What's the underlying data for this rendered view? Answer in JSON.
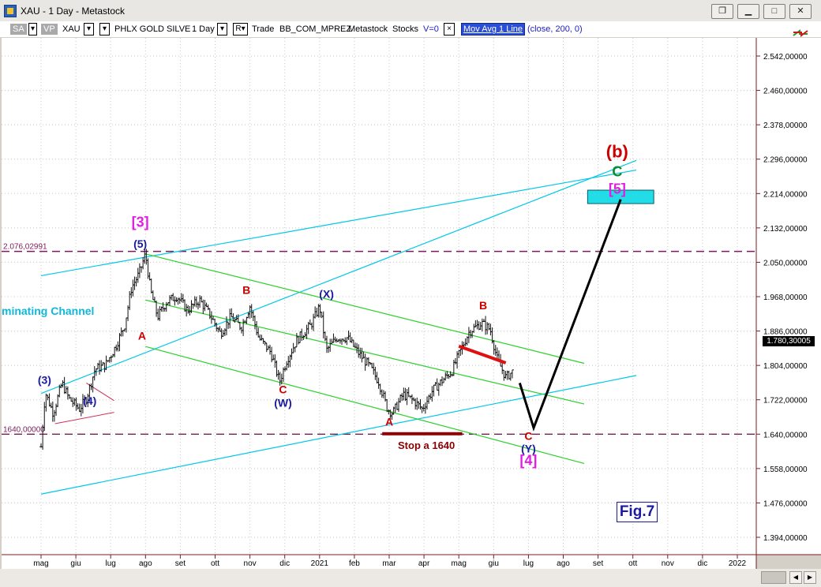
{
  "window": {
    "title": "XAU - 1 Day - Metastock",
    "controls": [
      "restore",
      "minimize",
      "maximize",
      "close"
    ]
  },
  "toolbar": {
    "sa": "SA",
    "vp": "VP",
    "symbol": "XAU",
    "name": "PHLX GOLD SILVE",
    "period": "1 Day",
    "r_label": "R",
    "trade": "Trade",
    "account": "BB_COM_MPREZ",
    "source": "Metastock",
    "stocks": "Stocks",
    "v": "V=0",
    "x_btn": "×",
    "indicator": "Mov Avg 1 Line",
    "params": "(close,  200,  0)"
  },
  "colors": {
    "red": "#cc0000",
    "blue": "#1a1aa0",
    "magenta": "#e020e0",
    "green": "#0a8a2a",
    "cyan": "#00c8e8",
    "channel_green": "#2bd12b",
    "level_line": "#7a1c5a"
  },
  "chart_data": {
    "type": "ohlc",
    "y_axis": {
      "ticks": [
        "2.542,00000",
        "2.460,00000",
        "2.378,00000",
        "2.296,00000",
        "2.214,00000",
        "2.132,00000",
        "2.050,00000",
        "1.968,00000",
        "1.886,00000",
        "1.804,00000",
        "1.722,00000",
        "1.640,00000",
        "1.558,00000",
        "1.476,00000",
        "1.394,00000"
      ],
      "tick_values": [
        2542,
        2460,
        2378,
        2296,
        2214,
        2132,
        2050,
        1968,
        1886,
        1804,
        1722,
        1640,
        1558,
        1476,
        1394
      ],
      "ylim": [
        1364,
        2590
      ]
    },
    "x_axis": {
      "labels": [
        "mag",
        "giu",
        "lug",
        "ago",
        "set",
        "ott",
        "nov",
        "dic",
        "2021",
        "feb",
        "mar",
        "apr",
        "mag",
        "giu",
        "lug",
        "ago",
        "set",
        "ott",
        "nov",
        "dic",
        "2022"
      ],
      "label_months": [
        0,
        1,
        2,
        3,
        4,
        5,
        6,
        7,
        8,
        9,
        10,
        11,
        12,
        13,
        14,
        15,
        16,
        17,
        18,
        19,
        20
      ]
    },
    "last_price": "1.780,30005",
    "level_labels": [
      "2.076,02991",
      "1640,00000"
    ],
    "levels": [
      2076,
      1640
    ],
    "price_path": [
      [
        0,
        1610
      ],
      [
        0.12,
        1740
      ],
      [
        0.35,
        1690
      ],
      [
        0.6,
        1762
      ],
      [
        0.8,
        1725
      ],
      [
        1.1,
        1700
      ],
      [
        1.3,
        1725
      ],
      [
        1.55,
        1795
      ],
      [
        1.85,
        1805
      ],
      [
        2.15,
        1850
      ],
      [
        2.4,
        1900
      ],
      [
        2.6,
        1990
      ],
      [
        2.8,
        2020
      ],
      [
        3.0,
        2070
      ],
      [
        3.15,
        1980
      ],
      [
        3.35,
        1920
      ],
      [
        3.6,
        1955
      ],
      [
        3.9,
        1970
      ],
      [
        4.2,
        1935
      ],
      [
        4.55,
        1960
      ],
      [
        4.85,
        1925
      ],
      [
        5.15,
        1880
      ],
      [
        5.45,
        1920
      ],
      [
        5.75,
        1895
      ],
      [
        6.0,
        1945
      ],
      [
        6.25,
        1870
      ],
      [
        6.6,
        1835
      ],
      [
        6.85,
        1765
      ],
      [
        7.05,
        1815
      ],
      [
        7.35,
        1865
      ],
      [
        7.75,
        1900
      ],
      [
        8.0,
        1945
      ],
      [
        8.2,
        1840
      ],
      [
        8.5,
        1870
      ],
      [
        8.8,
        1870
      ],
      [
        9.15,
        1830
      ],
      [
        9.45,
        1800
      ],
      [
        9.7,
        1765
      ],
      [
        9.95,
        1700
      ],
      [
        10.1,
        1690
      ],
      [
        10.4,
        1735
      ],
      [
        10.7,
        1720
      ],
      [
        10.95,
        1700
      ],
      [
        11.25,
        1745
      ],
      [
        11.55,
        1770
      ],
      [
        11.8,
        1790
      ],
      [
        12.0,
        1830
      ],
      [
        12.3,
        1885
      ],
      [
        12.65,
        1905
      ],
      [
        12.9,
        1890
      ],
      [
        13.1,
        1820
      ],
      [
        13.35,
        1775
      ],
      [
        13.55,
        1790
      ]
    ],
    "wave_labels": [
      {
        "text": "(3)",
        "x": 0.1,
        "y": 1760,
        "color": "blue"
      },
      {
        "text": "(4)",
        "x": 1.4,
        "y": 1710,
        "color": "blue"
      },
      {
        "text": "[3]",
        "x": 2.85,
        "y": 2135,
        "color": "magenta"
      },
      {
        "text": "(5)",
        "x": 2.85,
        "y": 2085,
        "color": "blue"
      },
      {
        "text": "A",
        "x": 2.9,
        "y": 1865,
        "color": "red"
      },
      {
        "text": "B",
        "x": 5.9,
        "y": 1975,
        "color": "red"
      },
      {
        "text": "C",
        "x": 6.95,
        "y": 1737,
        "color": "red"
      },
      {
        "text": "(W)",
        "x": 6.95,
        "y": 1705,
        "color": "blue"
      },
      {
        "text": "(X)",
        "x": 8.2,
        "y": 1965,
        "color": "blue"
      },
      {
        "text": "A",
        "x": 10.0,
        "y": 1660,
        "color": "red"
      },
      {
        "text": "B",
        "x": 12.7,
        "y": 1938,
        "color": "red"
      },
      {
        "text": "C",
        "x": 14.0,
        "y": 1626,
        "color": "red"
      },
      {
        "text": "(Y)",
        "x": 14.0,
        "y": 1596,
        "color": "blue"
      },
      {
        "text": "[4]",
        "x": 14.0,
        "y": 1566,
        "color": "magenta"
      },
      {
        "text": "(b)",
        "x": 16.55,
        "y": 2300,
        "color": "red"
      },
      {
        "text": "C",
        "x": 16.55,
        "y": 2255,
        "color": "green"
      },
      {
        "text": "[5]",
        "x": 16.55,
        "y": 2214,
        "color": "magenta"
      }
    ],
    "annotations": {
      "channel_text": "minating Channel",
      "stop_text": "Stop a 1640",
      "fig": "Fig.7"
    },
    "target_box": {
      "x0": 15.7,
      "x1": 17.6,
      "y0": 2190,
      "y1": 2222
    },
    "projection": [
      [
        13.75,
        1762
      ],
      [
        14.15,
        1655
      ],
      [
        16.65,
        2200
      ]
    ],
    "red_segment": [
      [
        12.0,
        1850
      ],
      [
        13.35,
        1810
      ]
    ],
    "stop_segment": [
      [
        9.8,
        1641
      ],
      [
        12.1,
        1641
      ]
    ],
    "cyan_channel": [
      [
        [
          0,
          1737
        ],
        [
          17.1,
          2293
        ]
      ],
      [
        [
          0,
          2018
        ],
        [
          17.1,
          2270
        ]
      ],
      [
        [
          0,
          1497
        ],
        [
          17.1,
          1780
        ]
      ]
    ],
    "green_channel": [
      [
        [
          3.0,
          2070
        ],
        [
          15.6,
          1809
        ]
      ],
      [
        [
          3.0,
          1960
        ],
        [
          15.6,
          1712
        ]
      ],
      [
        [
          3.0,
          1849
        ],
        [
          15.6,
          1570
        ]
      ]
    ],
    "red_triangle": [
      [
        [
          0.4,
          1665
        ],
        [
          2.1,
          1692
        ]
      ],
      [
        [
          1.3,
          1762
        ],
        [
          2.1,
          1720
        ]
      ]
    ]
  }
}
